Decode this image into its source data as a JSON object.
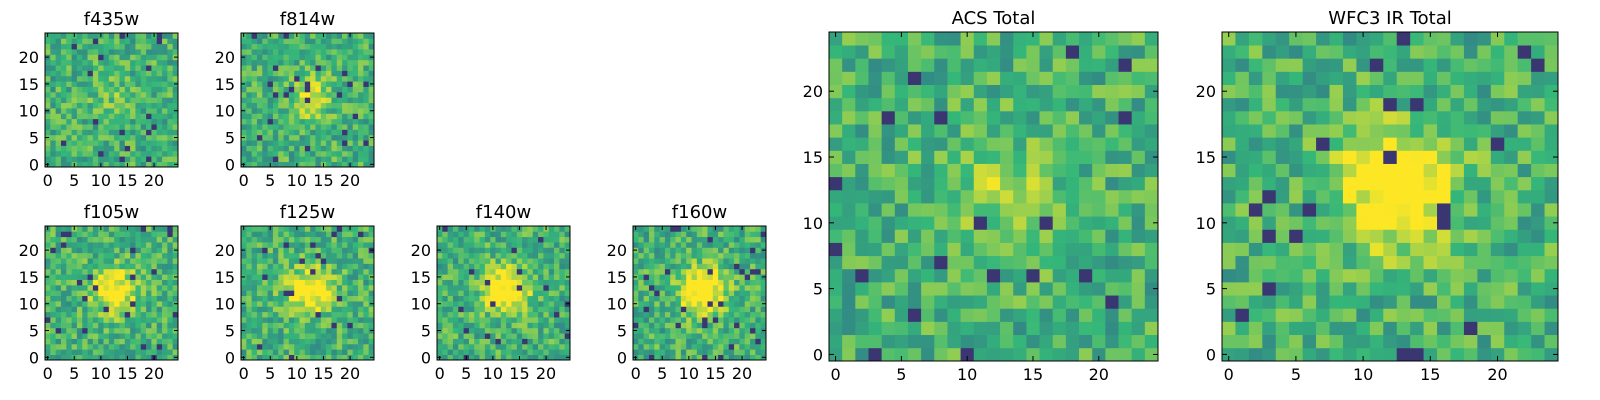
{
  "colormap": [
    "#440154",
    "#31688e",
    "#35b779",
    "#fde725"
  ],
  "chart_data": [
    {
      "type": "heatmap",
      "title": "f435w",
      "grid_size": 25,
      "xlim": [
        0,
        24
      ],
      "ylim": [
        0,
        24
      ],
      "x_ticks": [
        0,
        5,
        10,
        15,
        20
      ],
      "y_ticks": [
        0,
        5,
        10,
        15,
        20
      ],
      "grid": false,
      "seed": 11,
      "blob": 0.1
    },
    {
      "type": "heatmap",
      "title": "f814w",
      "grid_size": 25,
      "xlim": [
        0,
        24
      ],
      "ylim": [
        0,
        24
      ],
      "x_ticks": [
        0,
        5,
        10,
        15,
        20
      ],
      "y_ticks": [
        0,
        5,
        10,
        15,
        20
      ],
      "grid": false,
      "seed": 23,
      "blob": 0.25
    },
    {
      "type": "heatmap",
      "title": "f105w",
      "grid_size": 25,
      "xlim": [
        0,
        24
      ],
      "ylim": [
        0,
        24
      ],
      "x_ticks": [
        0,
        5,
        10,
        15,
        20
      ],
      "y_ticks": [
        0,
        5,
        10,
        15,
        20
      ],
      "grid": false,
      "seed": 37,
      "blob": 0.45
    },
    {
      "type": "heatmap",
      "title": "f125w",
      "grid_size": 25,
      "xlim": [
        0,
        24
      ],
      "ylim": [
        0,
        24
      ],
      "x_ticks": [
        0,
        5,
        10,
        15,
        20
      ],
      "y_ticks": [
        0,
        5,
        10,
        15,
        20
      ],
      "grid": false,
      "seed": 41,
      "blob": 0.45
    },
    {
      "type": "heatmap",
      "title": "f140w",
      "grid_size": 25,
      "xlim": [
        0,
        24
      ],
      "ylim": [
        0,
        24
      ],
      "x_ticks": [
        0,
        5,
        10,
        15,
        20
      ],
      "y_ticks": [
        0,
        5,
        10,
        15,
        20
      ],
      "grid": false,
      "seed": 53,
      "blob": 0.5
    },
    {
      "type": "heatmap",
      "title": "f160w",
      "grid_size": 25,
      "xlim": [
        0,
        24
      ],
      "ylim": [
        0,
        24
      ],
      "x_ticks": [
        0,
        5,
        10,
        15,
        20
      ],
      "y_ticks": [
        0,
        5,
        10,
        15,
        20
      ],
      "grid": false,
      "seed": 67,
      "blob": 0.55
    },
    {
      "type": "heatmap",
      "title": "ACS Total",
      "grid_size": 25,
      "xlim": [
        0,
        24
      ],
      "ylim": [
        0,
        24
      ],
      "x_ticks": [
        0,
        5,
        10,
        15,
        20
      ],
      "y_ticks": [
        0,
        5,
        10,
        15,
        20
      ],
      "grid": false,
      "seed": 79,
      "blob": 0.2
    },
    {
      "type": "heatmap",
      "title": "WFC3 IR Total",
      "grid_size": 25,
      "xlim": [
        0,
        24
      ],
      "ylim": [
        0,
        24
      ],
      "x_ticks": [
        0,
        5,
        10,
        15,
        20
      ],
      "y_ticks": [
        0,
        5,
        10,
        15,
        20
      ],
      "grid": false,
      "seed": 97,
      "blob": 0.55
    }
  ]
}
